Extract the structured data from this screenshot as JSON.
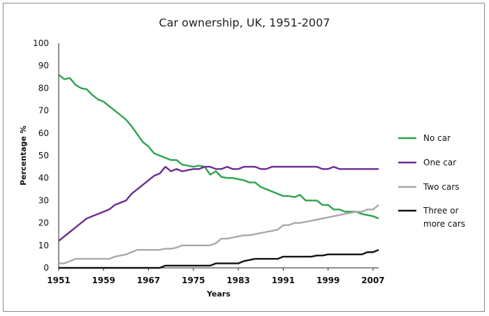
{
  "chart_data": {
    "type": "line",
    "title": "Car ownership, UK, 1951-2007",
    "xlabel": "Years",
    "ylabel": "Percentage %",
    "xlim": [
      1951,
      2008
    ],
    "ylim": [
      0,
      100
    ],
    "x_ticks": [
      "1951",
      "1959",
      "1967",
      "1975",
      "1983",
      "1991",
      "1999",
      "2007"
    ],
    "y_ticks": [
      "0",
      "10",
      "20",
      "30",
      "40",
      "50",
      "60",
      "70",
      "80",
      "90",
      "100"
    ],
    "grid": false,
    "legend_position": "right",
    "series": [
      {
        "name": "No car",
        "color": "#2ca24b",
        "points": [
          [
            1951,
            86
          ],
          [
            1952,
            84
          ],
          [
            1953,
            84.5
          ],
          [
            1954,
            81.5
          ],
          [
            1955,
            80
          ],
          [
            1956,
            79.5
          ],
          [
            1957,
            77
          ],
          [
            1958,
            75
          ],
          [
            1959,
            74
          ],
          [
            1960,
            72
          ],
          [
            1961,
            70
          ],
          [
            1962,
            68
          ],
          [
            1963,
            66
          ],
          [
            1964,
            63
          ],
          [
            1965,
            59.5
          ],
          [
            1966,
            56
          ],
          [
            1967,
            54
          ],
          [
            1968,
            51
          ],
          [
            1969,
            50
          ],
          [
            1970,
            49
          ],
          [
            1971,
            48
          ],
          [
            1972,
            48
          ],
          [
            1973,
            46
          ],
          [
            1974,
            45.5
          ],
          [
            1975,
            45
          ],
          [
            1976,
            45.5
          ],
          [
            1977,
            45
          ],
          [
            1978,
            41.5
          ],
          [
            1979,
            43
          ],
          [
            1980,
            40.5
          ],
          [
            1981,
            40
          ],
          [
            1982,
            40
          ],
          [
            1983,
            39.5
          ],
          [
            1984,
            39
          ],
          [
            1985,
            38
          ],
          [
            1986,
            38
          ],
          [
            1987,
            36
          ],
          [
            1988,
            35
          ],
          [
            1989,
            34
          ],
          [
            1990,
            33
          ],
          [
            1991,
            32
          ],
          [
            1992,
            32
          ],
          [
            1993,
            31.5
          ],
          [
            1994,
            32.5
          ],
          [
            1995,
            30
          ],
          [
            1996,
            30
          ],
          [
            1997,
            30
          ],
          [
            1998,
            28
          ],
          [
            1999,
            28
          ],
          [
            2000,
            26
          ],
          [
            2001,
            26
          ],
          [
            2002,
            25
          ],
          [
            2003,
            25
          ],
          [
            2004,
            25
          ],
          [
            2005,
            24
          ],
          [
            2006,
            23.5
          ],
          [
            2007,
            23
          ],
          [
            2008,
            22
          ]
        ]
      },
      {
        "name": "One car",
        "color": "#6a2d91",
        "points": [
          [
            1951,
            12
          ],
          [
            1952,
            14
          ],
          [
            1953,
            16
          ],
          [
            1954,
            18
          ],
          [
            1955,
            20
          ],
          [
            1956,
            22
          ],
          [
            1957,
            23
          ],
          [
            1958,
            24
          ],
          [
            1959,
            25
          ],
          [
            1960,
            26
          ],
          [
            1961,
            28
          ],
          [
            1962,
            29
          ],
          [
            1963,
            30
          ],
          [
            1964,
            33
          ],
          [
            1965,
            35
          ],
          [
            1966,
            37
          ],
          [
            1967,
            39
          ],
          [
            1968,
            41
          ],
          [
            1969,
            42
          ],
          [
            1970,
            45
          ],
          [
            1971,
            43
          ],
          [
            1972,
            44
          ],
          [
            1973,
            43
          ],
          [
            1974,
            43.5
          ],
          [
            1975,
            44
          ],
          [
            1976,
            44
          ],
          [
            1977,
            45
          ],
          [
            1978,
            45
          ],
          [
            1979,
            44
          ],
          [
            1980,
            44
          ],
          [
            1981,
            45
          ],
          [
            1982,
            44
          ],
          [
            1983,
            44
          ],
          [
            1984,
            45
          ],
          [
            1985,
            45
          ],
          [
            1986,
            45
          ],
          [
            1987,
            44
          ],
          [
            1988,
            44
          ],
          [
            1989,
            45
          ],
          [
            1990,
            45
          ],
          [
            1991,
            45
          ],
          [
            1992,
            45
          ],
          [
            1993,
            45
          ],
          [
            1994,
            45
          ],
          [
            1995,
            45
          ],
          [
            1996,
            45
          ],
          [
            1997,
            45
          ],
          [
            1998,
            44
          ],
          [
            1999,
            44
          ],
          [
            2000,
            45
          ],
          [
            2001,
            44
          ],
          [
            2002,
            44
          ],
          [
            2003,
            44
          ],
          [
            2004,
            44
          ],
          [
            2005,
            44
          ],
          [
            2006,
            44
          ],
          [
            2007,
            44
          ],
          [
            2008,
            44
          ]
        ]
      },
      {
        "name": "Two cars",
        "color": "#a8a8a8",
        "points": [
          [
            1951,
            2
          ],
          [
            1952,
            2
          ],
          [
            1953,
            3
          ],
          [
            1954,
            4
          ],
          [
            1955,
            4
          ],
          [
            1956,
            4
          ],
          [
            1957,
            4
          ],
          [
            1958,
            4
          ],
          [
            1959,
            4
          ],
          [
            1960,
            4
          ],
          [
            1961,
            5
          ],
          [
            1962,
            5.5
          ],
          [
            1963,
            6
          ],
          [
            1964,
            7
          ],
          [
            1965,
            8
          ],
          [
            1966,
            8
          ],
          [
            1967,
            8
          ],
          [
            1968,
            8
          ],
          [
            1969,
            8
          ],
          [
            1970,
            8.5
          ],
          [
            1971,
            8.5
          ],
          [
            1972,
            9
          ],
          [
            1973,
            10
          ],
          [
            1974,
            10
          ],
          [
            1975,
            10
          ],
          [
            1976,
            10
          ],
          [
            1977,
            10
          ],
          [
            1978,
            10
          ],
          [
            1979,
            11
          ],
          [
            1980,
            13
          ],
          [
            1981,
            13
          ],
          [
            1982,
            13.5
          ],
          [
            1983,
            14
          ],
          [
            1984,
            14.5
          ],
          [
            1985,
            14.5
          ],
          [
            1986,
            15
          ],
          [
            1987,
            15.5
          ],
          [
            1988,
            16
          ],
          [
            1989,
            16.5
          ],
          [
            1990,
            17
          ],
          [
            1991,
            19
          ],
          [
            1992,
            19
          ],
          [
            1993,
            20
          ],
          [
            1994,
            20
          ],
          [
            1995,
            20.5
          ],
          [
            1996,
            21
          ],
          [
            1997,
            21.5
          ],
          [
            1998,
            22
          ],
          [
            1999,
            22.5
          ],
          [
            2000,
            23
          ],
          [
            2001,
            23.5
          ],
          [
            2002,
            24
          ],
          [
            2003,
            24.5
          ],
          [
            2004,
            25
          ],
          [
            2005,
            25
          ],
          [
            2006,
            26
          ],
          [
            2007,
            26
          ],
          [
            2008,
            28
          ]
        ]
      },
      {
        "name": "Three or more cars",
        "color": "#111111",
        "points": [
          [
            1951,
            0
          ],
          [
            1952,
            0
          ],
          [
            1953,
            0
          ],
          [
            1954,
            0
          ],
          [
            1955,
            0
          ],
          [
            1956,
            0
          ],
          [
            1957,
            0
          ],
          [
            1958,
            0
          ],
          [
            1959,
            0
          ],
          [
            1960,
            0
          ],
          [
            1961,
            0
          ],
          [
            1962,
            0
          ],
          [
            1963,
            0
          ],
          [
            1964,
            0
          ],
          [
            1965,
            0
          ],
          [
            1966,
            0
          ],
          [
            1967,
            0
          ],
          [
            1968,
            0
          ],
          [
            1969,
            0
          ],
          [
            1970,
            1
          ],
          [
            1971,
            1
          ],
          [
            1972,
            1
          ],
          [
            1973,
            1
          ],
          [
            1974,
            1
          ],
          [
            1975,
            1
          ],
          [
            1976,
            1
          ],
          [
            1977,
            1
          ],
          [
            1978,
            1
          ],
          [
            1979,
            2
          ],
          [
            1980,
            2
          ],
          [
            1981,
            2
          ],
          [
            1982,
            2
          ],
          [
            1983,
            2
          ],
          [
            1984,
            3
          ],
          [
            1985,
            3.5
          ],
          [
            1986,
            4
          ],
          [
            1987,
            4
          ],
          [
            1988,
            4
          ],
          [
            1989,
            4
          ],
          [
            1990,
            4
          ],
          [
            1991,
            5
          ],
          [
            1992,
            5
          ],
          [
            1993,
            5
          ],
          [
            1994,
            5
          ],
          [
            1995,
            5
          ],
          [
            1996,
            5
          ],
          [
            1997,
            5.5
          ],
          [
            1998,
            5.5
          ],
          [
            1999,
            6
          ],
          [
            2000,
            6
          ],
          [
            2001,
            6
          ],
          [
            2002,
            6
          ],
          [
            2003,
            6
          ],
          [
            2004,
            6
          ],
          [
            2005,
            6
          ],
          [
            2006,
            7
          ],
          [
            2007,
            7
          ],
          [
            2008,
            8
          ]
        ]
      }
    ],
    "legend": [
      {
        "lines": [
          "No car"
        ],
        "color": "#2ca24b"
      },
      {
        "lines": [
          "One car"
        ],
        "color": "#6a2d91"
      },
      {
        "lines": [
          "Two cars"
        ],
        "color": "#a8a8a8"
      },
      {
        "lines": [
          "Three or",
          "more cars"
        ],
        "color": "#111111"
      }
    ]
  }
}
